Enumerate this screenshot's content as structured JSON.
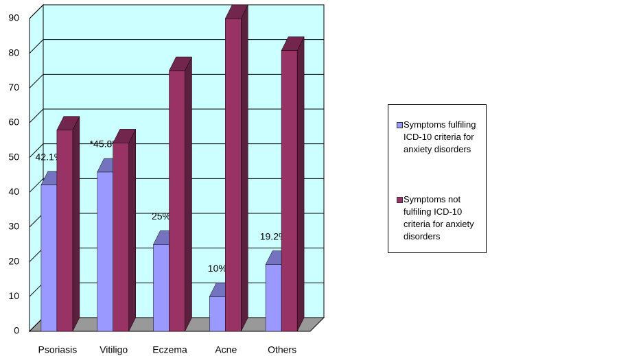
{
  "chart_data": {
    "type": "bar3d",
    "categories": [
      "Psoriasis",
      "Vitiligo",
      "Eczema",
      "Acne",
      "Others"
    ],
    "series": [
      {
        "name": "Symptoms fulfiling ICD-10 criteria for anxiety disorders",
        "color": "#9999ff",
        "values": [
          42.1,
          45.8,
          25,
          10,
          19.2
        ],
        "value_labels": [
          "42.1%",
          "*45.8%",
          "25%",
          "10%",
          "19.2%"
        ]
      },
      {
        "name": "Symptoms not fulfiling ICD-10 criteria for anxiety disorders",
        "color": "#993366",
        "values": [
          57.9,
          54.2,
          75,
          90,
          80.8
        ]
      }
    ],
    "ylim": [
      0,
      90
    ],
    "yticks": [
      0,
      10,
      20,
      30,
      40,
      50,
      60,
      70,
      80,
      90
    ],
    "grid": true,
    "legend": "right"
  }
}
